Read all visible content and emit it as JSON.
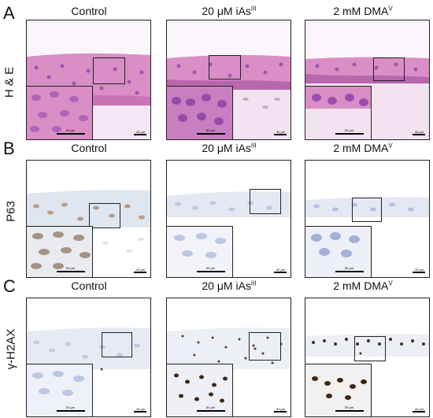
{
  "panels": {
    "A": {
      "letter": "A",
      "row_label": "H & E"
    },
    "B": {
      "letter": "B",
      "row_label": "P63"
    },
    "C": {
      "letter": "C",
      "row_label": "γ-H2AX"
    }
  },
  "columns": [
    {
      "base": "Control",
      "sup": ""
    },
    {
      "base": "20 μM iAs",
      "sup": "III"
    },
    {
      "base": "2 mM DMA",
      "sup": "V"
    }
  ],
  "scale": {
    "main_label": "40 μm",
    "inset_label": "50 μm"
  },
  "colors": {
    "he_pink": "#d98ec5",
    "he_purple": "#8d43a8",
    "p63_blue": "#b7c3df",
    "nuclei_brown": "#5b3a1f"
  }
}
